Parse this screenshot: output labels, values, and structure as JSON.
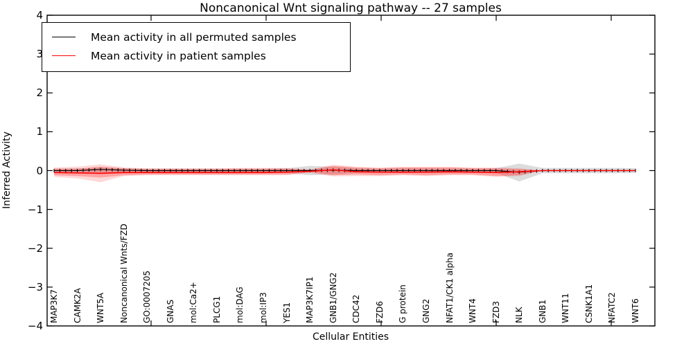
{
  "title": "Noncanonical Wnt signaling pathway -- 27 samples",
  "axes": {
    "ylabel": "Inferred Activity",
    "xlabel": "Cellular Entities",
    "ytick_labels": [
      "4",
      "3",
      "2",
      "1",
      "0",
      "−1",
      "−2",
      "−3",
      "−4"
    ],
    "ytick_values": [
      4,
      3,
      2,
      1,
      0,
      -1,
      -2,
      -3,
      -4
    ]
  },
  "legend": {
    "position": "upper left",
    "entries": [
      {
        "label": "Mean activity in all permuted samples",
        "color": "#000000"
      },
      {
        "label": "Mean activity in patient samples",
        "color": "#ff0000"
      }
    ]
  },
  "colors": {
    "permuted_line": "#000000",
    "patient_line": "#ff0000",
    "permuted_band": "rgba(130,130,130,0.28)",
    "patient_band_outer": "rgba(255,60,60,0.20)",
    "patient_band_inner": "rgba(255,40,40,0.30)"
  },
  "chart_data": {
    "type": "line",
    "title": "Noncanonical Wnt signaling pathway -- 27 samples",
    "xlabel": "Cellular Entities",
    "ylabel": "Inferred Activity",
    "ylim": [
      -4,
      4
    ],
    "grid": false,
    "legend_position": "upper left",
    "categories": [
      "MAP3K7",
      "CAMK2A",
      "WNT5A",
      "Noncanonical Wnts/FZD",
      "GO:0007205",
      "GNAS",
      "mol:Ca2+",
      "PLCG1",
      "mol:DAG",
      "mol:IP3",
      "YES1",
      "MAP3K7IP1",
      "GNB1/GNG2",
      "CDC42",
      "FZD6",
      "G protein",
      "GNG2",
      "NFAT1/CK1 alpha",
      "WNT4",
      "FZD3",
      "NLK",
      "GNB1",
      "WNT11",
      "CSNK1A1",
      "NFATC2",
      "WNT6"
    ],
    "series": [
      {
        "name": "Mean activity in all permuted samples",
        "color": "#000000",
        "values": [
          0,
          0,
          0.03,
          0.01,
          0,
          0,
          0,
          0,
          0,
          0,
          0,
          0,
          0.01,
          0,
          0,
          0,
          0,
          0,
          0,
          0,
          -0.04,
          0,
          0,
          0,
          0,
          0
        ]
      },
      {
        "name": "Mean activity in patient samples",
        "color": "#ff0000",
        "values": [
          -0.05,
          -0.06,
          -0.07,
          -0.05,
          -0.05,
          -0.05,
          -0.05,
          -0.05,
          -0.05,
          -0.05,
          -0.04,
          -0.02,
          0.02,
          -0.03,
          -0.04,
          -0.04,
          -0.04,
          -0.03,
          -0.04,
          -0.05,
          -0.03,
          0,
          0,
          0,
          0,
          0
        ]
      }
    ],
    "bands": [
      {
        "name": "permuted-range",
        "upper": [
          0.05,
          0.06,
          0.08,
          0.06,
          0.05,
          0.05,
          0.05,
          0.05,
          0.05,
          0.05,
          0.06,
          0.12,
          0.1,
          0.06,
          0.05,
          0.06,
          0.06,
          0.06,
          0.05,
          0.06,
          0.18,
          0.07,
          0.07,
          0.07,
          0.07,
          0.06
        ],
        "lower": [
          -0.05,
          -0.06,
          -0.08,
          -0.06,
          -0.05,
          -0.05,
          -0.05,
          -0.05,
          -0.05,
          -0.05,
          -0.06,
          -0.12,
          -0.1,
          -0.06,
          -0.05,
          -0.06,
          -0.06,
          -0.06,
          -0.05,
          -0.06,
          -0.28,
          -0.07,
          -0.07,
          -0.07,
          -0.07,
          -0.06
        ]
      },
      {
        "name": "patient-range-outer",
        "upper": [
          0.08,
          0.1,
          0.16,
          0.08,
          0.06,
          0.06,
          0.06,
          0.06,
          0.07,
          0.07,
          0.07,
          0.03,
          0.15,
          0.1,
          0.08,
          0.1,
          0.1,
          0.1,
          0.08,
          0.08,
          0.06,
          0,
          0,
          0,
          0,
          0
        ],
        "lower": [
          -0.16,
          -0.2,
          -0.3,
          -0.14,
          -0.12,
          -0.12,
          -0.12,
          -0.12,
          -0.12,
          -0.12,
          -0.12,
          -0.06,
          -0.15,
          -0.14,
          -0.14,
          -0.12,
          -0.14,
          -0.12,
          -0.12,
          -0.16,
          -0.14,
          0,
          0,
          0,
          0,
          0
        ]
      },
      {
        "name": "patient-range-inner",
        "upper": [
          0.05,
          0.05,
          0.1,
          0.06,
          0.04,
          0.04,
          0.04,
          0.04,
          0.05,
          0.05,
          0.05,
          0.02,
          0.12,
          0.08,
          0.06,
          0.08,
          0.08,
          0.08,
          0.06,
          0.06,
          0.04,
          0,
          0,
          0,
          0,
          0
        ],
        "lower": [
          -0.12,
          -0.14,
          -0.18,
          -0.12,
          -0.1,
          -0.1,
          -0.1,
          -0.1,
          -0.1,
          -0.1,
          -0.1,
          -0.04,
          -0.12,
          -0.1,
          -0.12,
          -0.1,
          -0.12,
          -0.1,
          -0.1,
          -0.14,
          -0.12,
          0,
          0,
          0,
          0,
          0
        ]
      }
    ]
  }
}
